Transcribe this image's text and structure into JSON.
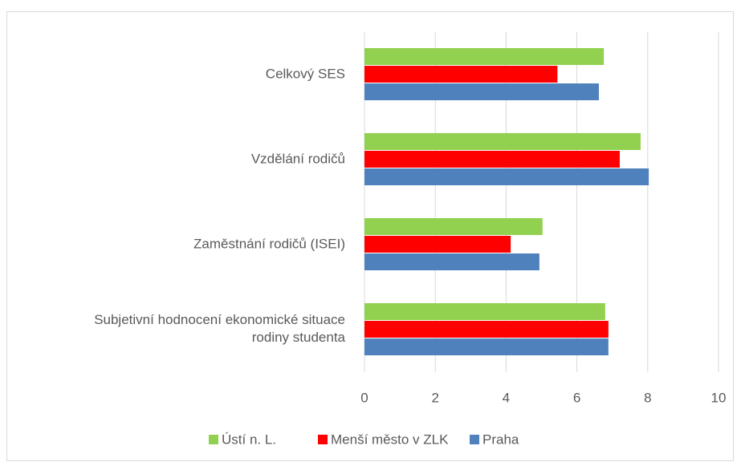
{
  "chart_data": {
    "type": "hbar",
    "categories": [
      "Celkový SES",
      "Vzdělání rodičů",
      "Zaměstnání rodičů (ISEI)",
      "Subjetivní hodnocení ekonomické situace\nrodiny studenta"
    ],
    "series": [
      {
        "name": "Ústí n. L.",
        "color": "#92d050",
        "values": [
          6.76,
          7.8,
          5.03,
          6.8
        ]
      },
      {
        "name": "Menší město v ZLK",
        "color": "#ff0000",
        "values": [
          5.45,
          7.21,
          4.13,
          6.89
        ]
      },
      {
        "name": "Praha",
        "color": "#4f81bd",
        "values": [
          6.62,
          8.03,
          4.94,
          6.89
        ]
      }
    ],
    "xlim": [
      0,
      10
    ],
    "xticks": [
      0,
      2,
      4,
      6,
      8,
      10
    ],
    "grid": true,
    "legend": "bottom"
  }
}
